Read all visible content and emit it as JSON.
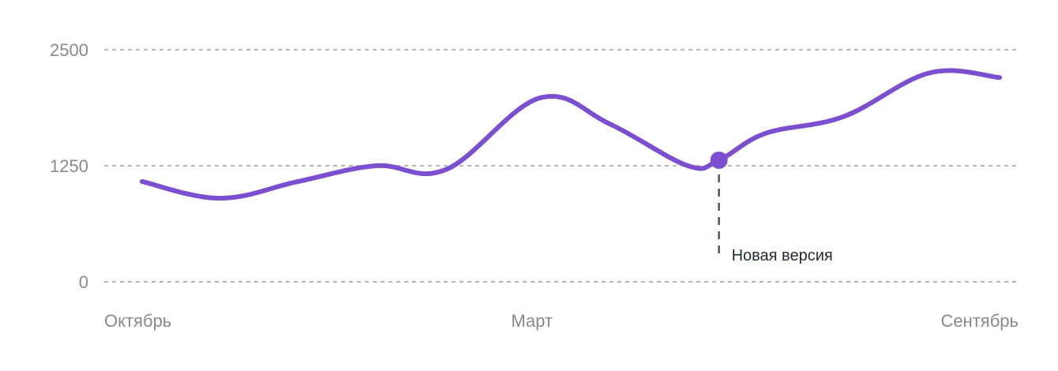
{
  "chart_data": {
    "type": "line",
    "x": [
      0,
      1,
      2,
      3,
      4,
      5,
      6,
      7,
      8,
      9,
      10,
      11
    ],
    "x_tick_labels": [
      {
        "x": 0,
        "label": "Октябрь"
      },
      {
        "x": 5,
        "label": "Март"
      },
      {
        "x": 11,
        "label": "Сентябрь"
      }
    ],
    "series": [
      {
        "values": [
          1080,
          900,
          1080,
          1250,
          1210,
          1980,
          1700,
          1250,
          1310,
          1600,
          1780,
          2250,
          2200
        ],
        "x": [
          0,
          1,
          2,
          3,
          3.9,
          5.1,
          6,
          7,
          7.4,
          8,
          9,
          10.1,
          11
        ],
        "color": "#7b4fcf"
      }
    ],
    "y_ticks": [
      "0",
      "1250",
      "2500"
    ],
    "ylim": [
      0,
      2500
    ],
    "xlim": [
      0,
      11
    ],
    "grid": "horizontal-dashed",
    "annotation": {
      "x": 7.4,
      "y": 1310,
      "label": "Новая версия"
    }
  }
}
